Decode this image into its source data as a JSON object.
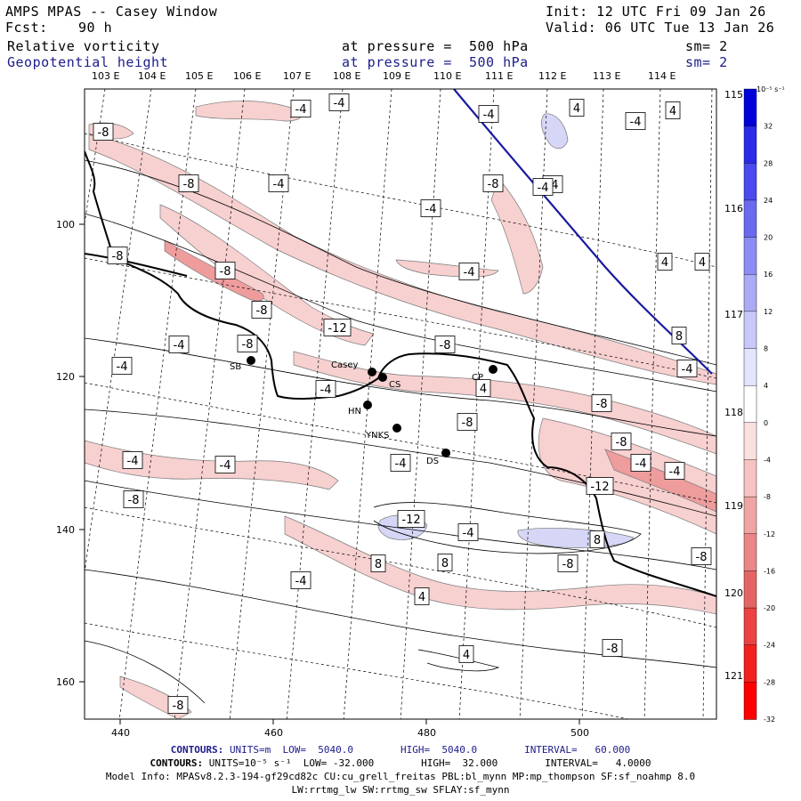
{
  "header": {
    "title": "AMPS MPAS -- Casey Window",
    "init": "Init: 12 UTC Fri 09 Jan 26",
    "fcst_label": "Fcst:",
    "fcst_value": "90 h",
    "valid": "Valid: 06 UTC Tue 13 Jan 26",
    "field1": "Relative vorticity",
    "field1_level": "at pressure =  500 hPa",
    "field1_sm": "sm= 2",
    "field2": "Geopotential height",
    "field2_level": "at pressure =  500 hPa",
    "field2_sm": "sm= 2"
  },
  "axes": {
    "top_lon": [
      "103 E",
      "104 E",
      "105 E",
      "106 E",
      "107 E",
      "108 E",
      "109 E",
      "110 E",
      "111 E",
      "112 E",
      "113 E",
      "114 E"
    ],
    "right_lon": [
      "115 E",
      "116 E",
      "117 E",
      "118 E",
      "119 E",
      "120 E",
      "121 E"
    ],
    "x_ticks": [
      "440",
      "460",
      "480",
      "500"
    ],
    "y_ticks": [
      "100",
      "120",
      "140",
      "160"
    ]
  },
  "stations": [
    {
      "name": "SB"
    },
    {
      "name": "Casey"
    },
    {
      "name": "CS"
    },
    {
      "name": "HN"
    },
    {
      "name": "YNKS"
    },
    {
      "name": "CP"
    },
    {
      "name": "DS"
    }
  ],
  "contour_labels": [
    "-8",
    "-4",
    "-4",
    "4",
    "-4",
    "-4",
    "4",
    "-8",
    "-8",
    "-4",
    "-4",
    "-4",
    "4",
    "-4",
    "-8",
    "-8",
    "4",
    "8",
    "-8",
    "-12",
    "-4",
    "-8",
    "-8",
    "-4",
    "-4",
    "4",
    "-4",
    "-8",
    "-4",
    "-8",
    "-8",
    "-4",
    "-8",
    "-4",
    "-12",
    "-8",
    "-12",
    "-4",
    "8",
    "8",
    "8",
    "-8",
    "4",
    "-4",
    "-8",
    "4",
    "-8",
    "-4",
    "-4",
    "-4"
  ],
  "colorbar": {
    "unit": "10⁻⁵ s⁻¹",
    "labels": [
      "32",
      "28",
      "24",
      "20",
      "16",
      "12",
      "8",
      "4",
      "0",
      "-4",
      "-8",
      "-12",
      "-16",
      "-20",
      "-24",
      "-28",
      "-32"
    ],
    "colors": [
      "#0000d8",
      "#2a2ae8",
      "#4a4aee",
      "#6a6af0",
      "#8c8cf4",
      "#aaaaf6",
      "#c8c8fa",
      "#e4e4fd",
      "#ffffff",
      "#fbe0e0",
      "#f6c2c2",
      "#f0a4a4",
      "#ea8686",
      "#e46464",
      "#ec4242",
      "#f42020",
      "#ff0000"
    ]
  },
  "footer": {
    "line1_label": "CONTOURS:",
    "line1_text": "UNITS=m  LOW=  5040.0        HIGH=  5040.0        INTERVAL=   60.000",
    "line2_label": "CONTOURS:",
    "line2_text": "UNITS=10⁻⁵ s⁻¹  LOW= -32.000        HIGH=  32.000        INTERVAL=   4.0000",
    "line3": "Model Info: MPASv8.2.3-194-gf29cd82c CU:cu_grell_freitas PBL:bl_mynn MP:mp_thompson SF:sf_noahmp 8.0",
    "line4": "LW:rrtmg_lw SW:rrtmg_sw SFLAY:sf_mynn"
  }
}
